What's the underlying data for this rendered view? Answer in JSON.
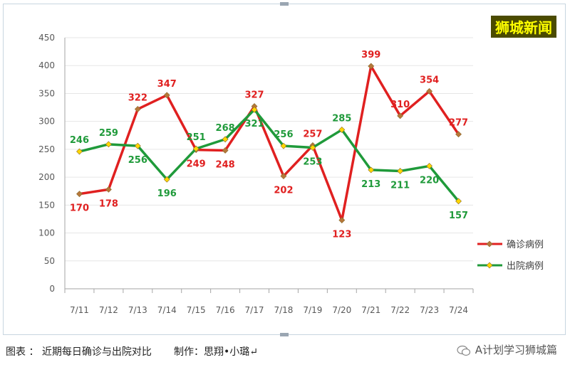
{
  "watermark": "狮城新闻",
  "caption": "图表 ： 近期每日确诊与出院对比       制作：思翔•小璐↵",
  "credit": "A计划学习狮城篇",
  "colors": {
    "confirmed": "#e02020",
    "discharged": "#1f9a3a",
    "marker_confirmed": "#b7773a",
    "marker_discharged": "#ffd700"
  },
  "chart_data": {
    "type": "line",
    "categories": [
      "7/11",
      "7/12",
      "7/13",
      "7/14",
      "7/15",
      "7/16",
      "7/17",
      "7/18",
      "7/19",
      "7/20",
      "7/21",
      "7/22",
      "7/23",
      "7/24"
    ],
    "ylim": [
      0,
      450
    ],
    "yticks": [
      0,
      50,
      100,
      150,
      200,
      250,
      300,
      350,
      400,
      450
    ],
    "grid": true,
    "legend_position": "right",
    "series": [
      {
        "name": "确诊病例",
        "values": [
          170,
          178,
          322,
          347,
          249,
          248,
          327,
          202,
          257,
          123,
          399,
          310,
          354,
          277
        ]
      },
      {
        "name": "出院病例",
        "values": [
          246,
          259,
          256,
          196,
          251,
          268,
          321,
          256,
          253,
          285,
          213,
          211,
          220,
          157
        ]
      }
    ]
  }
}
